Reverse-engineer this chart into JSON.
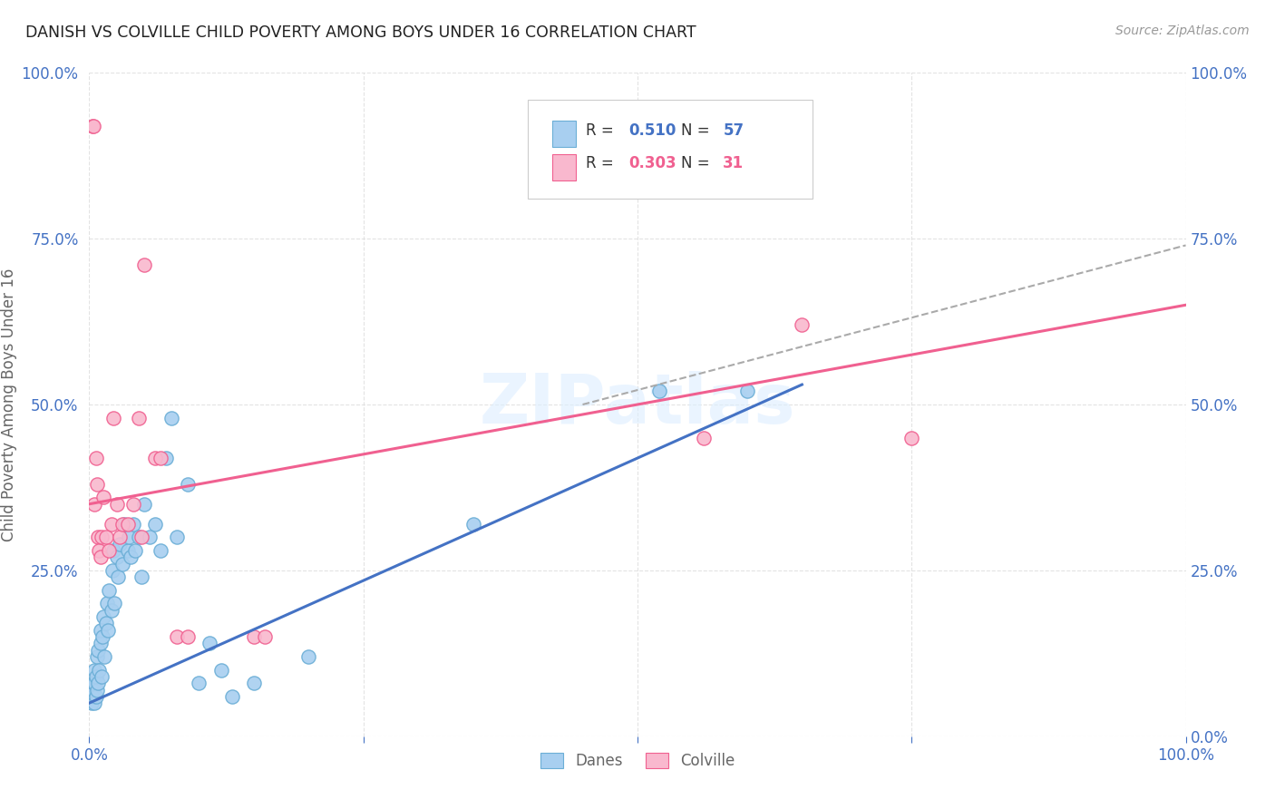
{
  "title": "DANISH VS COLVILLE CHILD POVERTY AMONG BOYS UNDER 16 CORRELATION CHART",
  "source": "Source: ZipAtlas.com",
  "ylabel": "Child Poverty Among Boys Under 16",
  "xlim": [
    0,
    1.0
  ],
  "ylim": [
    0,
    1.0
  ],
  "xtick_vals": [
    0.0,
    0.25,
    0.5,
    0.75,
    1.0
  ],
  "ytick_vals": [
    0.0,
    0.25,
    0.5,
    0.75,
    1.0
  ],
  "xticklabels": [
    "0.0%",
    "",
    "",
    "",
    "100.0%"
  ],
  "left_yticklabels": [
    "",
    "25.0%",
    "50.0%",
    "75.0%",
    "100.0%"
  ],
  "right_yticklabels": [
    "0.0%",
    "25.0%",
    "50.0%",
    "75.0%",
    "100.0%"
  ],
  "danes_color": "#A8CFF0",
  "colville_color": "#F9B8CE",
  "danes_edge_color": "#6BAED6",
  "colville_edge_color": "#F06090",
  "danes_line_color": "#4472C4",
  "colville_line_color": "#F06090",
  "danes_R": 0.51,
  "danes_N": 57,
  "colville_R": 0.303,
  "colville_N": 31,
  "watermark": "ZIPatlas",
  "danes_scatter": [
    [
      0.002,
      0.05
    ],
    [
      0.003,
      0.06
    ],
    [
      0.004,
      0.07
    ],
    [
      0.004,
      0.08
    ],
    [
      0.005,
      0.05
    ],
    [
      0.005,
      0.08
    ],
    [
      0.005,
      0.1
    ],
    [
      0.006,
      0.06
    ],
    [
      0.006,
      0.09
    ],
    [
      0.007,
      0.07
    ],
    [
      0.007,
      0.12
    ],
    [
      0.008,
      0.08
    ],
    [
      0.008,
      0.13
    ],
    [
      0.009,
      0.1
    ],
    [
      0.01,
      0.14
    ],
    [
      0.01,
      0.16
    ],
    [
      0.011,
      0.09
    ],
    [
      0.012,
      0.15
    ],
    [
      0.013,
      0.18
    ],
    [
      0.014,
      0.12
    ],
    [
      0.015,
      0.17
    ],
    [
      0.016,
      0.2
    ],
    [
      0.017,
      0.16
    ],
    [
      0.018,
      0.22
    ],
    [
      0.02,
      0.19
    ],
    [
      0.021,
      0.25
    ],
    [
      0.022,
      0.28
    ],
    [
      0.023,
      0.2
    ],
    [
      0.025,
      0.27
    ],
    [
      0.026,
      0.24
    ],
    [
      0.028,
      0.29
    ],
    [
      0.03,
      0.26
    ],
    [
      0.032,
      0.32
    ],
    [
      0.035,
      0.28
    ],
    [
      0.036,
      0.3
    ],
    [
      0.038,
      0.27
    ],
    [
      0.04,
      0.32
    ],
    [
      0.042,
      0.28
    ],
    [
      0.045,
      0.3
    ],
    [
      0.048,
      0.24
    ],
    [
      0.05,
      0.35
    ],
    [
      0.055,
      0.3
    ],
    [
      0.06,
      0.32
    ],
    [
      0.065,
      0.28
    ],
    [
      0.07,
      0.42
    ],
    [
      0.075,
      0.48
    ],
    [
      0.08,
      0.3
    ],
    [
      0.09,
      0.38
    ],
    [
      0.1,
      0.08
    ],
    [
      0.11,
      0.14
    ],
    [
      0.12,
      0.1
    ],
    [
      0.13,
      0.06
    ],
    [
      0.15,
      0.08
    ],
    [
      0.2,
      0.12
    ],
    [
      0.35,
      0.32
    ],
    [
      0.52,
      0.52
    ],
    [
      0.6,
      0.52
    ]
  ],
  "colville_scatter": [
    [
      0.003,
      0.92
    ],
    [
      0.004,
      0.92
    ],
    [
      0.005,
      0.35
    ],
    [
      0.006,
      0.42
    ],
    [
      0.007,
      0.38
    ],
    [
      0.008,
      0.3
    ],
    [
      0.009,
      0.28
    ],
    [
      0.01,
      0.27
    ],
    [
      0.011,
      0.3
    ],
    [
      0.013,
      0.36
    ],
    [
      0.015,
      0.3
    ],
    [
      0.018,
      0.28
    ],
    [
      0.02,
      0.32
    ],
    [
      0.022,
      0.48
    ],
    [
      0.025,
      0.35
    ],
    [
      0.028,
      0.3
    ],
    [
      0.03,
      0.32
    ],
    [
      0.035,
      0.32
    ],
    [
      0.04,
      0.35
    ],
    [
      0.045,
      0.48
    ],
    [
      0.048,
      0.3
    ],
    [
      0.05,
      0.71
    ],
    [
      0.06,
      0.42
    ],
    [
      0.065,
      0.42
    ],
    [
      0.08,
      0.15
    ],
    [
      0.09,
      0.15
    ],
    [
      0.15,
      0.15
    ],
    [
      0.16,
      0.15
    ],
    [
      0.56,
      0.45
    ],
    [
      0.65,
      0.62
    ],
    [
      0.75,
      0.45
    ]
  ],
  "background_color": "#FFFFFF",
  "grid_color": "#DDDDDD"
}
